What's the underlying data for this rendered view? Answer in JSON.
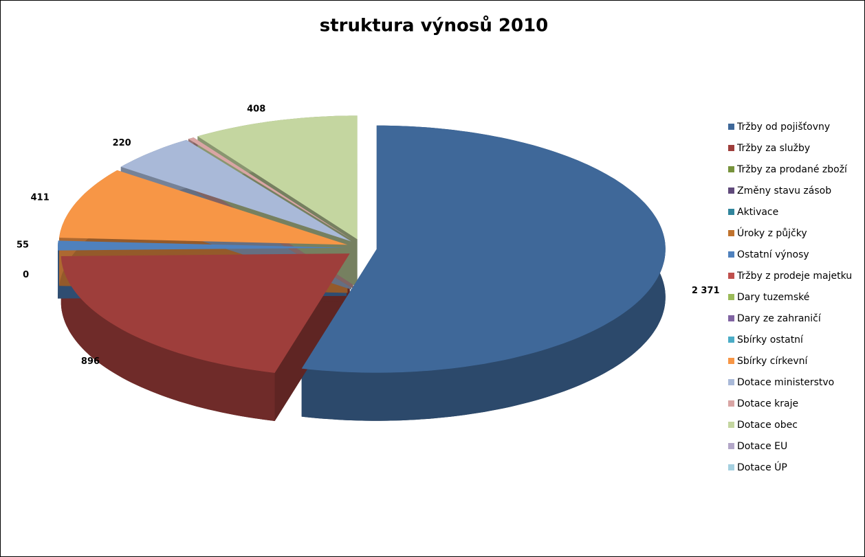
{
  "chart_data": {
    "type": "pie3d",
    "title": "struktura výnosů 2010",
    "categories": [
      "Tržby od pojišťovny",
      "Tržby za služby",
      "Tržby za prodané zboží",
      "Změny stavu zásob",
      "Aktivace",
      "Úroky z půjčky",
      "Ostatní výnosy",
      "Tržby z prodeje majetku",
      "Dary tuzemské",
      "Dary ze zahraničí",
      "Sbírky ostatní",
      "Sbírky církevní",
      "Dotace ministerstvo",
      "Dotace kraje",
      "Dotace obec",
      "Dotace EU",
      "Dotace ÚP"
    ],
    "values": [
      2371,
      896,
      0,
      0,
      0,
      0,
      55,
      0,
      0,
      0,
      0,
      411,
      220,
      15,
      408,
      0,
      0
    ],
    "value_labels": [
      "2 371",
      "896",
      null,
      null,
      null,
      "0",
      "55",
      null,
      null,
      null,
      null,
      "411",
      "220",
      null,
      "408",
      null,
      null
    ],
    "colors": [
      "#3f6899",
      "#9e3e3b",
      "#77933c",
      "#604a7b",
      "#31859c",
      "#c0732e",
      "#4f81bd",
      "#c0504d",
      "#9bbb59",
      "#8064a2",
      "#4bacc6",
      "#f79646",
      "#a9b9d8",
      "#d9a5a4",
      "#c4d6a0",
      "#b3a7c8",
      "#a5d0e0"
    ],
    "legend": "right"
  }
}
